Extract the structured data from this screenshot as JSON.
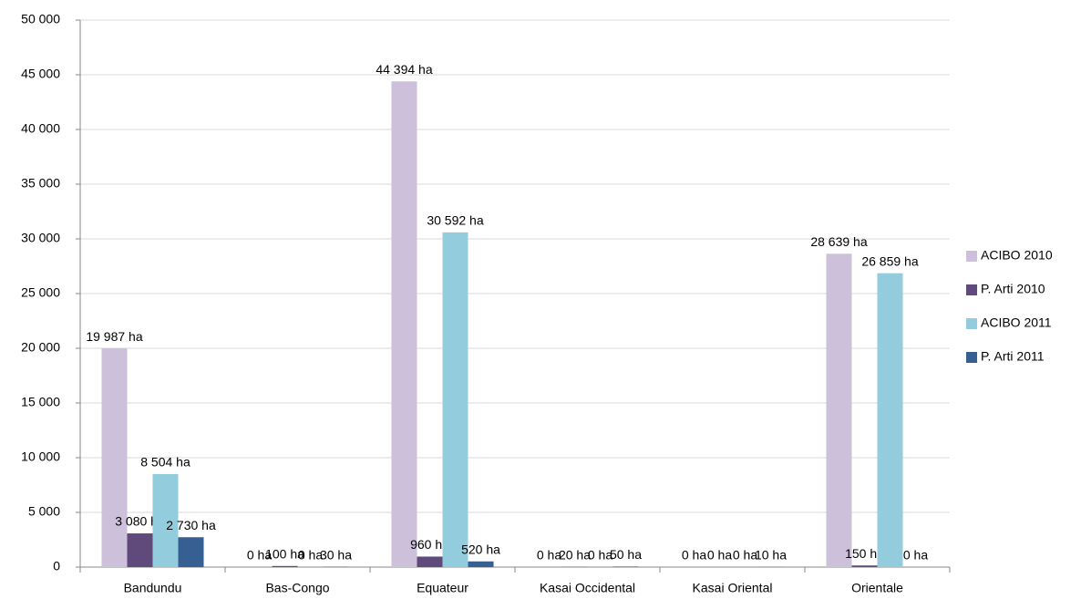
{
  "chart_data": {
    "type": "bar",
    "categories": [
      "Bandundu",
      "Bas-Congo",
      "Equateur",
      "Kasai Occidental",
      "Kasai Oriental",
      "Orientale"
    ],
    "series": [
      {
        "name": "ACIBO 2010",
        "color": "#ccc0da",
        "values": [
          19987,
          0,
          44394,
          0,
          0,
          28639
        ],
        "value_labels": [
          "19 987 ha",
          "0 ha",
          "44 394 ha",
          "0 ha",
          "0 ha",
          "28 639 ha"
        ]
      },
      {
        "name": "P. Arti 2010",
        "color": "#604a7b",
        "values": [
          3080,
          100,
          960,
          20,
          0,
          150
        ],
        "value_labels": [
          "3 080 ha",
          "100 ha",
          "960 ha",
          "20 ha",
          "0 ha",
          "150 ha"
        ]
      },
      {
        "name": "ACIBO 2011",
        "color": "#93cddd",
        "values": [
          8504,
          0,
          30592,
          0,
          0,
          26859
        ],
        "value_labels": [
          "8 504 ha",
          "0 ha",
          "30 592 ha",
          "0 ha",
          "0 ha",
          "26 859 ha"
        ]
      },
      {
        "name": "P. Arti 2011",
        "color": "#376092",
        "values": [
          2730,
          30,
          520,
          50,
          10,
          0
        ],
        "value_labels": [
          "2 730 ha",
          "30 ha",
          "520 ha",
          "50 ha",
          "10 ha",
          "0 ha"
        ]
      }
    ],
    "ylim": [
      0,
      50000
    ],
    "yticks": [
      0,
      {
        "value": 5000,
        "label": "5 000"
      },
      {
        "value": 10000,
        "label": "10 000"
      },
      {
        "value": 15000,
        "label": "15 000"
      },
      {
        "value": 20000,
        "label": "20 000"
      },
      {
        "value": 25000,
        "label": "25 000"
      },
      {
        "value": 30000,
        "label": "30 000"
      },
      {
        "value": 35000,
        "label": "35 000"
      },
      {
        "value": 40000,
        "label": "40 000"
      },
      {
        "value": 45000,
        "label": "45 000"
      },
      {
        "value": 50000,
        "label": "50 000"
      }
    ],
    "grid": true,
    "legend": "right"
  }
}
